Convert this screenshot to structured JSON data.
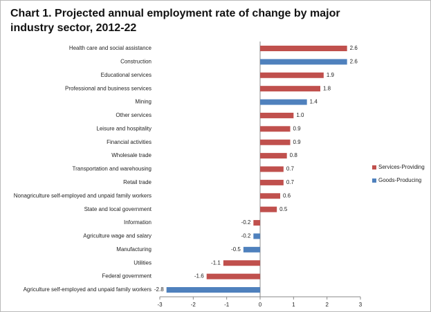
{
  "chart_data": {
    "type": "hbar",
    "title": "Chart 1. Projected annual employment rate of change by major industry sector, 2012-22",
    "categories": [
      "Health care and social assistance",
      "Construction",
      "Educational services",
      "Professional and business services",
      "Mining",
      "Other services",
      "Leisure and hospitality",
      "Financial activities",
      "Wholesale trade",
      "Transportation and warehousing",
      "Retail trade",
      "Nonagriculture self-employed and unpaid family workers",
      "State and local government",
      "Information",
      "Agriculture wage and salary",
      "Manufacturing",
      "Utilities",
      "Federal government",
      "Agriculture self-employed and unpaid family workers"
    ],
    "series": [
      {
        "name": "Services-Providing",
        "color": "#c0504d",
        "values": [
          2.6,
          null,
          1.9,
          1.8,
          null,
          1.0,
          0.9,
          0.9,
          0.8,
          0.7,
          0.7,
          0.6,
          0.5,
          -0.2,
          null,
          null,
          -1.1,
          -1.6,
          null
        ],
        "value_labels": [
          "2.6",
          null,
          "1.9",
          "1.8",
          null,
          "1.0",
          "0.9",
          "0.9",
          "0.8",
          "0.7",
          "0.7",
          "0.6",
          "0.5",
          "-0.2",
          null,
          null,
          "-1.1",
          "-1.6",
          null
        ]
      },
      {
        "name": "Goods-Producing",
        "color": "#4f81bd",
        "values": [
          null,
          2.6,
          null,
          null,
          1.4,
          null,
          null,
          null,
          null,
          null,
          null,
          null,
          null,
          null,
          -0.2,
          -0.5,
          null,
          null,
          -2.8
        ],
        "value_labels": [
          null,
          "2.6",
          null,
          null,
          "1.4",
          null,
          null,
          null,
          null,
          null,
          null,
          null,
          null,
          null,
          "-0.2",
          "-0.5",
          null,
          null,
          "-2.8"
        ]
      }
    ],
    "xlim": [
      -3,
      3
    ],
    "xticks": [
      -3,
      -2,
      -1,
      0,
      1,
      2,
      3
    ],
    "grid": false,
    "legend": "right"
  }
}
